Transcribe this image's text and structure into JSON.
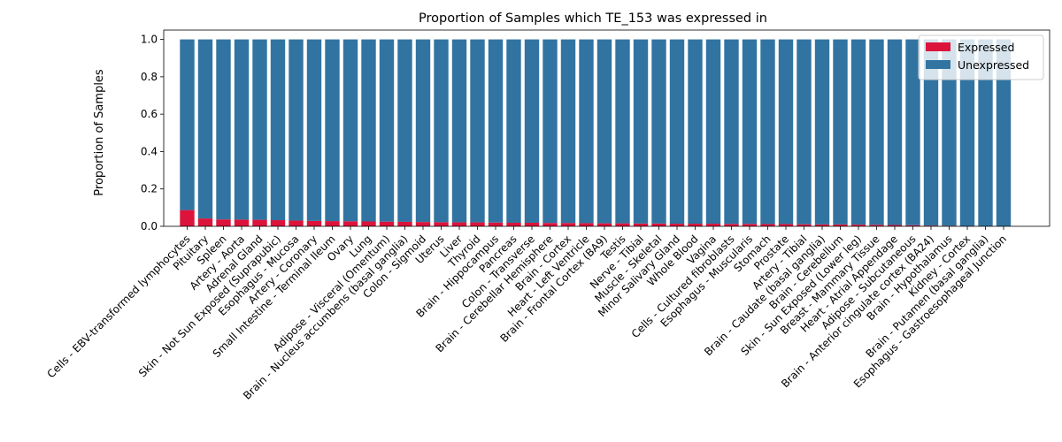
{
  "chart_data": {
    "type": "bar",
    "stacked": true,
    "title": "Proportion of Samples which TE_153 was expressed in",
    "xlabel": "",
    "ylabel": "Proportion of Samples",
    "ylim": [
      0,
      1.05
    ],
    "yticks": [
      0.0,
      0.2,
      0.4,
      0.6,
      0.8,
      1.0
    ],
    "ytick_labels": [
      "0.0",
      "0.2",
      "0.4",
      "0.6",
      "0.8",
      "1.0"
    ],
    "grid": false,
    "legend_position": "top-right",
    "colors": {
      "Expressed": "#dc143c",
      "Unexpressed": "#3274a1"
    },
    "categories": [
      "Cells - EBV-transformed lymphocytes",
      "Pituitary",
      "Spleen",
      "Artery - Aorta",
      "Adrenal Gland",
      "Skin - Not Sun Exposed (Suprapubic)",
      "Esophagus - Mucosa",
      "Artery - Coronary",
      "Small Intestine - Terminal Ileum",
      "Ovary",
      "Lung",
      "Adipose - Visceral (Omentum)",
      "Brain - Nucleus accumbens (basal ganglia)",
      "Colon - Sigmoid",
      "Uterus",
      "Liver",
      "Thyroid",
      "Brain - Hippocampus",
      "Pancreas",
      "Colon - Transverse",
      "Brain - Cerebellar Hemisphere",
      "Brain - Cortex",
      "Heart - Left Ventricle",
      "Brain - Frontal Cortex (BA9)",
      "Testis",
      "Nerve - Tibial",
      "Muscle - Skeletal",
      "Minor Salivary Gland",
      "Whole Blood",
      "Vagina",
      "Cells - Cultured fibroblasts",
      "Esophagus - Muscularis",
      "Stomach",
      "Prostate",
      "Artery - Tibial",
      "Brain - Caudate (basal ganglia)",
      "Brain - Cerebellum",
      "Skin - Sun Exposed (Lower leg)",
      "Breast - Mammary Tissue",
      "Heart - Atrial Appendage",
      "Adipose - Subcutaneous",
      "Brain - Anterior cingulate cortex (BA24)",
      "Brain - Hypothalamus",
      "Kidney - Cortex",
      "Brain - Putamen (basal ganglia)",
      "Esophagus - Gastroesophageal Junction"
    ],
    "series": [
      {
        "name": "Expressed",
        "values": [
          0.087,
          0.042,
          0.037,
          0.036,
          0.035,
          0.033,
          0.031,
          0.029,
          0.028,
          0.027,
          0.026,
          0.025,
          0.024,
          0.023,
          0.022,
          0.021,
          0.021,
          0.02,
          0.019,
          0.019,
          0.018,
          0.018,
          0.017,
          0.016,
          0.016,
          0.015,
          0.015,
          0.014,
          0.014,
          0.014,
          0.013,
          0.013,
          0.012,
          0.012,
          0.011,
          0.01,
          0.01,
          0.009,
          0.008,
          0.007,
          0.006,
          0.004,
          0.003,
          0.002,
          0.001,
          0.0
        ]
      },
      {
        "name": "Unexpressed",
        "values": [
          0.913,
          0.958,
          0.963,
          0.964,
          0.965,
          0.967,
          0.969,
          0.971,
          0.972,
          0.973,
          0.974,
          0.975,
          0.976,
          0.977,
          0.978,
          0.979,
          0.979,
          0.98,
          0.981,
          0.981,
          0.982,
          0.982,
          0.983,
          0.984,
          0.984,
          0.985,
          0.985,
          0.986,
          0.986,
          0.986,
          0.987,
          0.987,
          0.988,
          0.988,
          0.989,
          0.99,
          0.99,
          0.991,
          0.992,
          0.993,
          0.994,
          0.996,
          0.997,
          0.998,
          0.999,
          1.0
        ]
      }
    ]
  }
}
